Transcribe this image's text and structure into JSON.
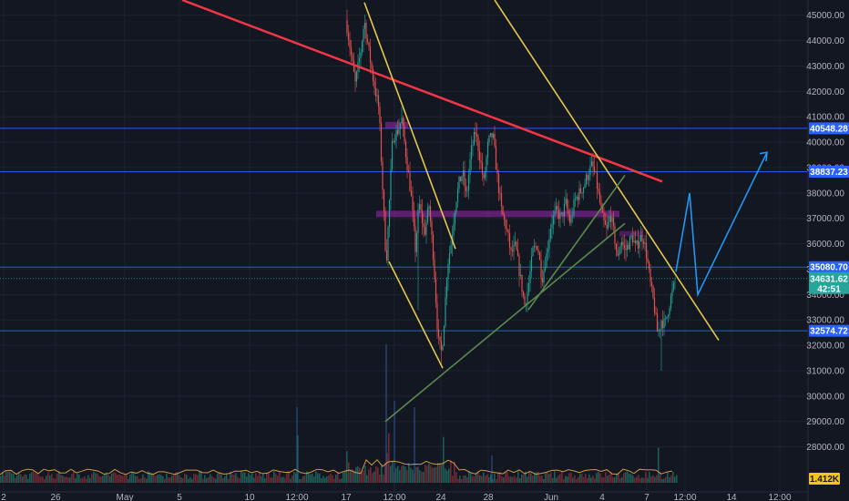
{
  "chart_data": {
    "type": "candlestick",
    "ylim": [
      26300,
      45600
    ],
    "yticks": [
      45000,
      44000,
      43000,
      42000,
      41000,
      40000,
      39000,
      38000,
      37000,
      36000,
      35000,
      34000,
      33000,
      32000,
      31000,
      30000,
      29000,
      28000
    ],
    "xticks": [
      "2",
      "26",
      "May",
      "5",
      "10",
      "12:00",
      "17",
      "12:00",
      "24",
      "28",
      "Jun",
      "4",
      "7",
      "12:00",
      "14",
      "12:00"
    ],
    "horizontal_levels": [
      {
        "label": "40548.28",
        "value": 40548.28
      },
      {
        "label": "38837.23",
        "value": 38837.23
      },
      {
        "label": "35080.70",
        "value": 35080.7
      },
      {
        "label": "32574.72",
        "value": 32574.72
      }
    ],
    "last_price": {
      "label": "34631.62",
      "countdown": "42:51",
      "value": 34631.62
    },
    "volume_label": "1.412K",
    "colors": {
      "background": "#131722",
      "up": "#26a69a",
      "down": "#ef5350",
      "level": "#2962ff",
      "resistance": "#f23645",
      "wedge": "#e5c54c",
      "support": "#5b8a4f",
      "zone": "#9c27b0",
      "projection": "#2196f3"
    },
    "candles_source": "approximated price path"
  }
}
